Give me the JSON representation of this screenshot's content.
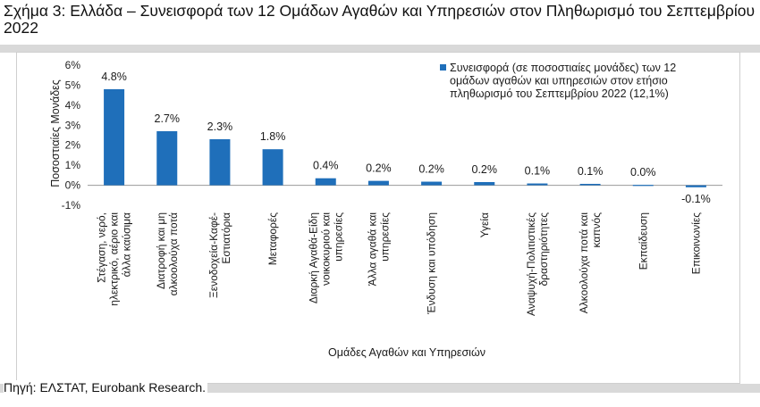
{
  "header": {
    "title": "Σχήμα 3: Ελλάδα – Συνεισφορά των 12 Ομάδων Αγαθών και Υπηρεσιών στον Πληθωρισμό του Σεπτεμβρίου 2022"
  },
  "footer": {
    "source": "Πηγή: ΕΛΣΤΑΤ, Eurobank Research."
  },
  "colors": {
    "bar": "#1f6fba",
    "grid": "#d0d0d0"
  },
  "chart_data": {
    "type": "bar",
    "categories": [
      [
        "Στέγαση, νερό,",
        "ηλεκτρικό, αέριο και",
        "άλλα καύσιμα"
      ],
      [
        "Διατροφή και μη",
        "αλκοολούχα ποτά"
      ],
      [
        "Ξενοδοχεία-Καφέ-",
        "Εστιατόρια"
      ],
      [
        "Μεταφορές"
      ],
      [
        "Διαρκή Αγαθά-Είδη",
        "νοικοκυριού και",
        "υπηρεσίες"
      ],
      [
        "Άλλα αγαθά και",
        "υπηρεσίες"
      ],
      [
        "Ένδυση και υπόδηση"
      ],
      [
        "Υγεία"
      ],
      [
        "Αναψυχή-Πολιτιστικές",
        "δραστηριότητες"
      ],
      [
        "Αλκοολούχα ποτά και",
        "καπνός"
      ],
      [
        "Εκπαίδευση"
      ],
      [
        "Επικοινωνίες"
      ]
    ],
    "series": [
      {
        "name": "Συνεισφορά (σε ποσοστιαίες μονάδες) των 12 ομάδων αγαθών και υπηρεσιών στον ετήσιο πληθωρισμό του Σεπτεμβρίου 2022 (12,1%)",
        "values": [
          4.8,
          2.7,
          2.3,
          1.8,
          0.4,
          0.2,
          0.2,
          0.2,
          0.1,
          0.1,
          0.0,
          -0.1
        ],
        "drawn_values": [
          4.8,
          2.7,
          2.3,
          1.8,
          0.35,
          0.22,
          0.18,
          0.16,
          0.09,
          0.07,
          0.02,
          -0.1
        ],
        "value_labels": [
          "4.8%",
          "2.7%",
          "2.3%",
          "1.8%",
          "0.4%",
          "0.2%",
          "0.2%",
          "0.2%",
          "0.1%",
          "0.1%",
          "0.0%",
          "-0.1%"
        ]
      }
    ],
    "legend_lines": [
      "Συνεισφορά (σε ποσοστιαίες μονάδες) των 12",
      "ομάδων αγαθών και υπηρεσιών στον ετήσιο",
      "πληθωρισμό του Σεπτεμβρίου 2022 (12,1%)"
    ],
    "xlabel": "Ομάδες Αγαθών και Υπηρεσιών",
    "ylabel": "Ποσοστιαίες Μονάδες",
    "yticks": [
      "-1%",
      "0%",
      "1%",
      "2%",
      "3%",
      "4%",
      "5%",
      "6%"
    ],
    "ylim": [
      -1,
      6
    ],
    "legend_position": "top-right",
    "grid": false
  }
}
